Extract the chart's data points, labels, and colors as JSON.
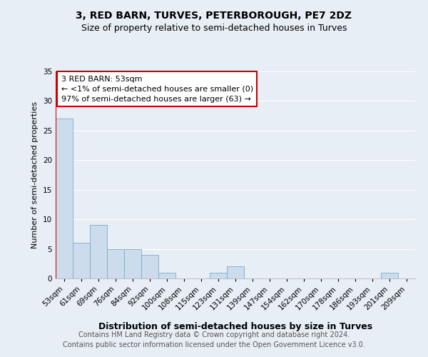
{
  "title": "3, RED BARN, TURVES, PETERBOROUGH, PE7 2DZ",
  "subtitle": "Size of property relative to semi-detached houses in Turves",
  "xlabel": "Distribution of semi-detached houses by size in Turves",
  "ylabel": "Number of semi-detached properties",
  "annotation_title": "3 RED BARN: 53sqm",
  "annotation_line2": "← <1% of semi-detached houses are smaller (0)",
  "annotation_line3": "97% of semi-detached houses are larger (63) →",
  "footer_line1": "Contains HM Land Registry data © Crown copyright and database right 2024.",
  "footer_line2": "Contains public sector information licensed under the Open Government Licence v3.0.",
  "categories": [
    "53sqm",
    "61sqm",
    "69sqm",
    "76sqm",
    "84sqm",
    "92sqm",
    "100sqm",
    "108sqm",
    "115sqm",
    "123sqm",
    "131sqm",
    "139sqm",
    "147sqm",
    "154sqm",
    "162sqm",
    "170sqm",
    "178sqm",
    "186sqm",
    "193sqm",
    "201sqm",
    "209sqm"
  ],
  "values": [
    27,
    6,
    9,
    5,
    5,
    4,
    1,
    0,
    0,
    1,
    2,
    0,
    0,
    0,
    0,
    0,
    0,
    0,
    0,
    1,
    0
  ],
  "bar_color": "#ccdcec",
  "bar_edge_color": "#7aaacb",
  "annotation_box_color": "#ffffff",
  "annotation_box_edge_color": "#cc0000",
  "left_line_color": "#cc0000",
  "ylim": [
    0,
    35
  ],
  "yticks": [
    0,
    5,
    10,
    15,
    20,
    25,
    30,
    35
  ],
  "bg_color": "#e8eef5",
  "plot_bg_color": "#e8eef5",
  "grid_color": "#ffffff",
  "title_fontsize": 10,
  "subtitle_fontsize": 9,
  "xlabel_fontsize": 9,
  "ylabel_fontsize": 8,
  "annotation_fontsize": 8,
  "tick_fontsize": 7.5,
  "footer_fontsize": 7
}
